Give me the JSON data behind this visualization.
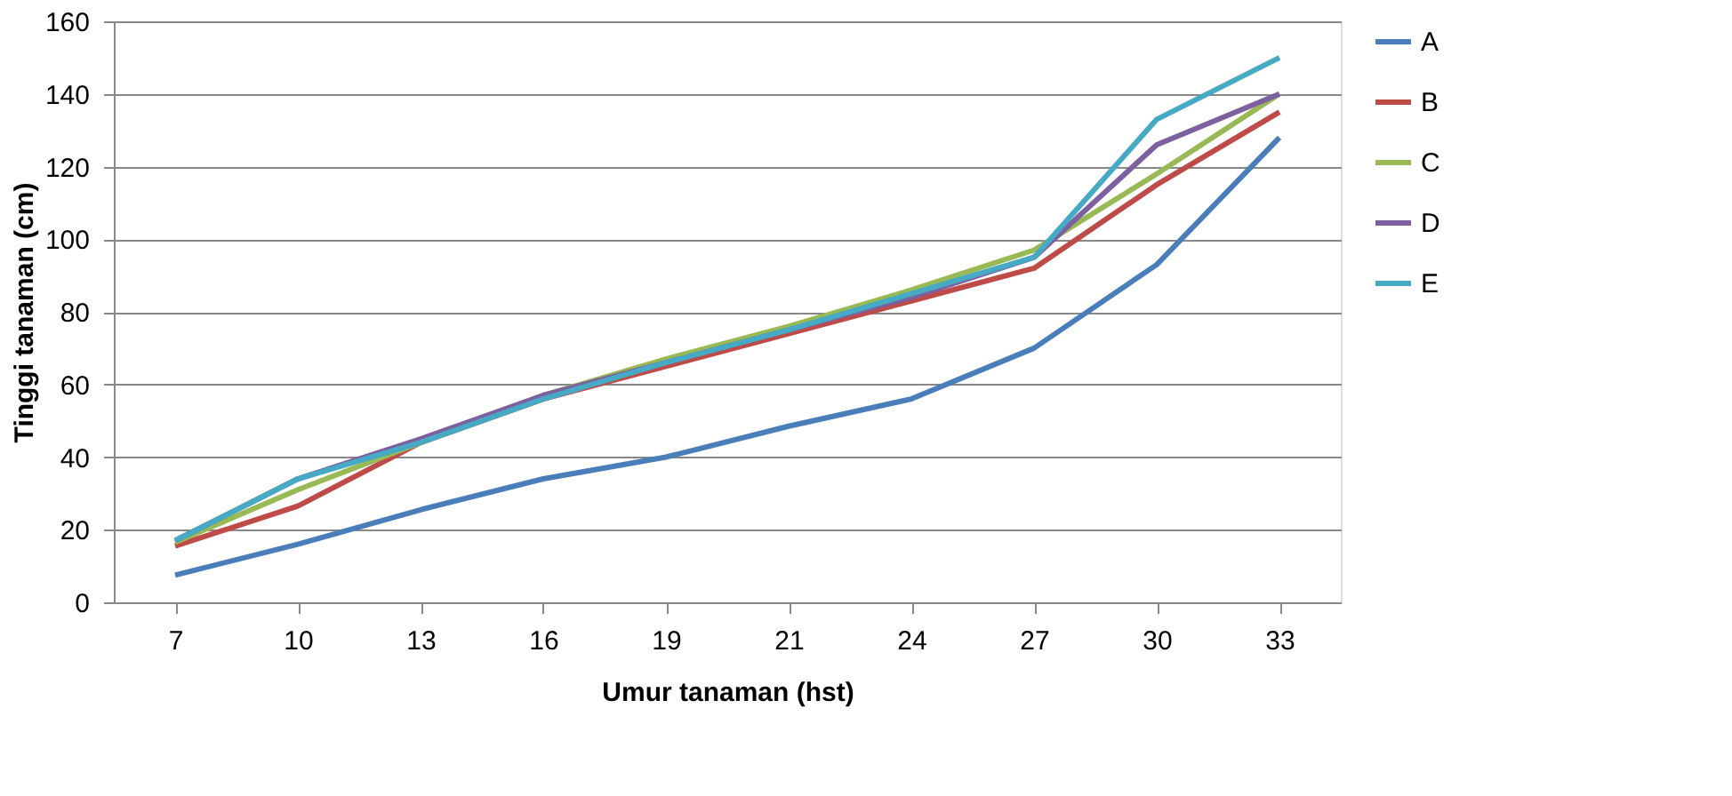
{
  "chart_data": {
    "type": "line",
    "xlabel": "Umur tanaman (hst)",
    "ylabel": "Tinggi tanaman (cm)",
    "categories": [
      "7",
      "10",
      "13",
      "16",
      "19",
      "21",
      "24",
      "27",
      "30",
      "33"
    ],
    "series": [
      {
        "name": "A",
        "color": "#4a7ebb",
        "values": [
          7.5,
          16,
          25.5,
          34,
          40,
          48.5,
          56,
          70,
          93,
          128
        ]
      },
      {
        "name": "B",
        "color": "#be4b48",
        "values": [
          15.5,
          26.5,
          44,
          56,
          65,
          74,
          83,
          92,
          115,
          135
        ]
      },
      {
        "name": "C",
        "color": "#98b954",
        "values": [
          16.5,
          31,
          44,
          57,
          67,
          76,
          86,
          97,
          118,
          140
        ]
      },
      {
        "name": "D",
        "color": "#7d60a0",
        "values": [
          17,
          34,
          45,
          57,
          66,
          75,
          84,
          95,
          126,
          140
        ]
      },
      {
        "name": "E",
        "color": "#46aac5",
        "values": [
          17,
          34,
          44,
          56,
          66,
          75,
          85,
          95,
          133,
          150
        ]
      }
    ],
    "ylim": [
      0,
      160
    ],
    "yticks": [
      0,
      20,
      40,
      60,
      80,
      100,
      120,
      140,
      160
    ],
    "grid": "y",
    "legend": "right",
    "marker": "none",
    "line_style": "solid"
  }
}
